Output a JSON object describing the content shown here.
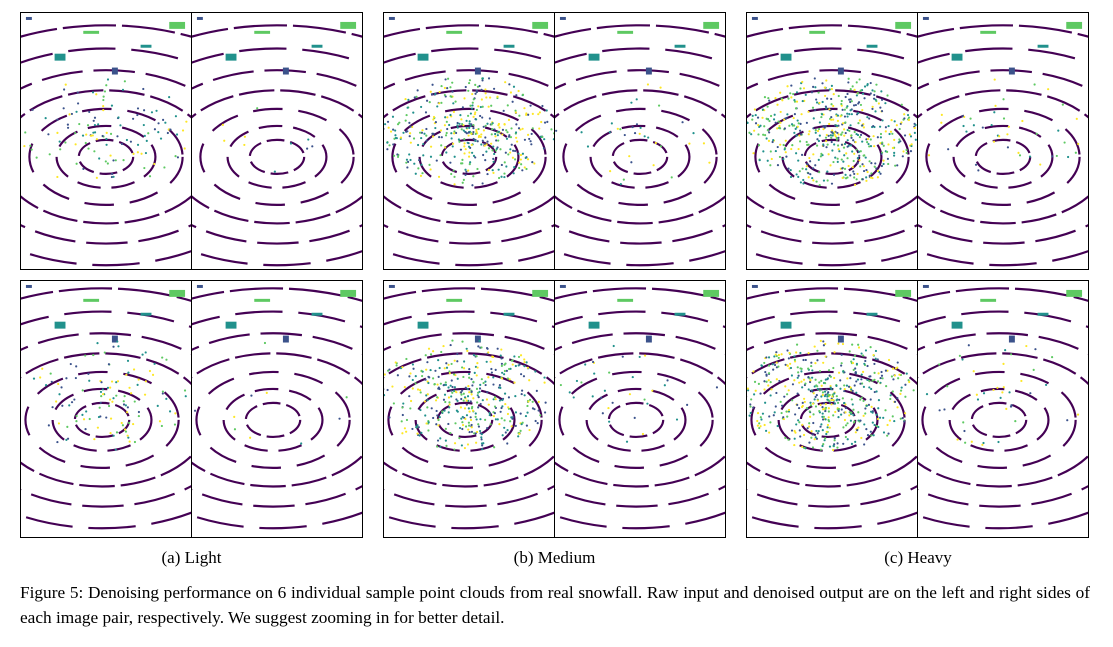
{
  "figure": {
    "subcaptions": [
      "(a) Light",
      "(b) Medium",
      "(c) Heavy"
    ],
    "caption": "Figure 5: Denoising performance on 6 individual sample point clouds from real snowfall. Raw input and denoised output are on the left and right sides of each image pair, respectively. We suggest zooming in for better detail.",
    "colors": {
      "ring": "#440154",
      "noise": [
        "#3b528b",
        "#21918c",
        "#5ec962",
        "#fde725"
      ]
    }
  }
}
